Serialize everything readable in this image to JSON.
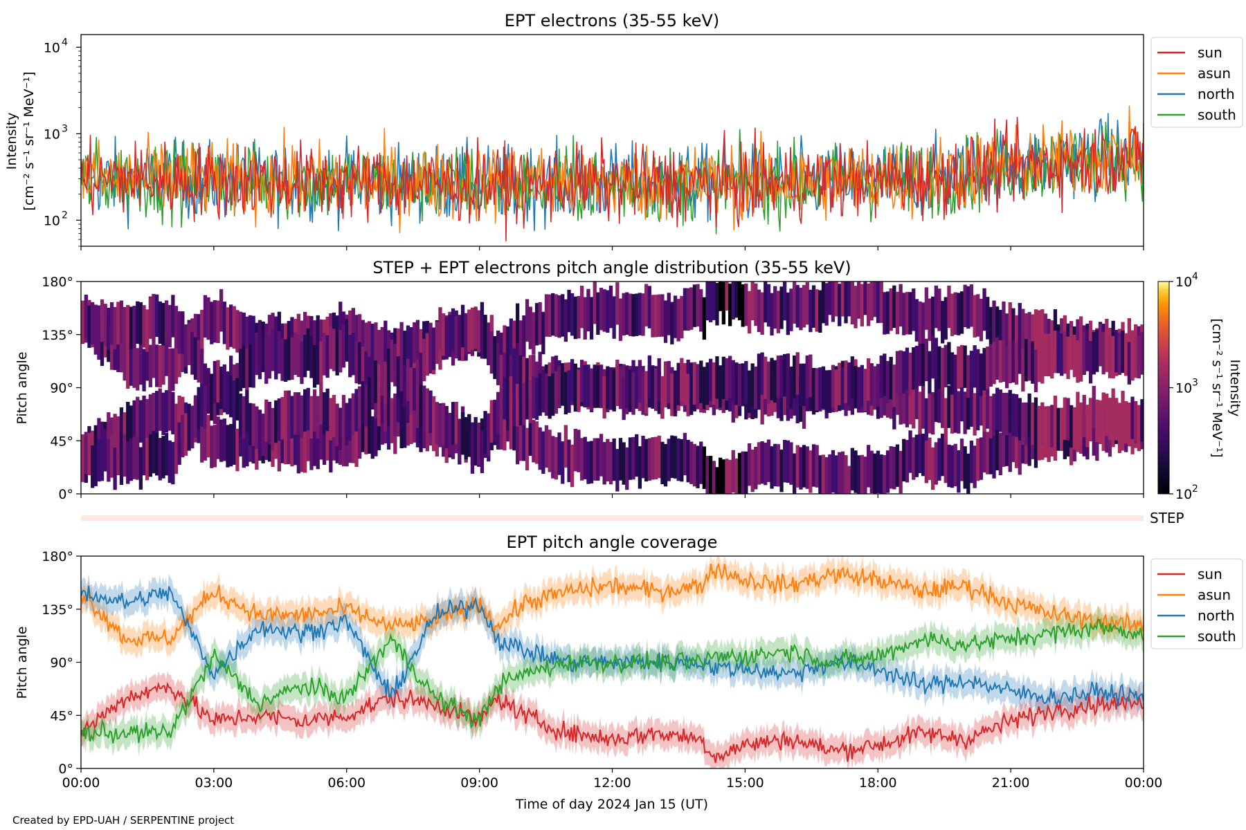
{
  "credit": "Created by EPD-UAH / SERPENTINE project",
  "colors": {
    "sun": "#d62728",
    "asun": "#ff7f0e",
    "north": "#1f77b4",
    "south": "#2ca02c",
    "step_band": "#fde9e2"
  },
  "step_label": "STEP",
  "xlabel": "Time of day 2024 Jan 15 (UT)",
  "x_ticks": [
    "00:00",
    "03:00",
    "06:00",
    "09:00",
    "12:00",
    "15:00",
    "18:00",
    "21:00",
    "00:00"
  ],
  "chart_data": [
    {
      "type": "line",
      "title": "EPT electrons (35-55 keV)",
      "ylabel_line1": "Intensity",
      "ylabel_line2": "[cm⁻² s⁻¹ sr⁻¹ MeV⁻¹]",
      "yscale": "log",
      "ylim": [
        50,
        14000
      ],
      "y_ticks": [
        {
          "value": 100,
          "base": "10",
          "exp": "2"
        },
        {
          "value": 1000,
          "base": "10",
          "exp": "3"
        },
        {
          "value": 10000,
          "base": "10",
          "exp": "4"
        }
      ],
      "xlim_hours": [
        0,
        24
      ],
      "legend_position": "outside-right",
      "series": [
        {
          "name": "sun",
          "trend": [
            [
              0,
              300
            ],
            [
              9,
              260
            ],
            [
              15,
              260
            ],
            [
              19,
              300
            ],
            [
              24,
              560
            ]
          ]
        },
        {
          "name": "asun",
          "trend": [
            [
              0,
              310
            ],
            [
              9,
              270
            ],
            [
              15,
              270
            ],
            [
              19,
              310
            ],
            [
              24,
              580
            ]
          ]
        },
        {
          "name": "north",
          "trend": [
            [
              0,
              300
            ],
            [
              9,
              265
            ],
            [
              15,
              265
            ],
            [
              19,
              305
            ],
            [
              24,
              590
            ]
          ]
        },
        {
          "name": "south",
          "trend": [
            [
              0,
              300
            ],
            [
              9,
              260
            ],
            [
              15,
              260
            ],
            [
              19,
              300
            ],
            [
              24,
              570
            ]
          ]
        }
      ]
    },
    {
      "type": "heatmap",
      "title": "STEP + EPT electrons pitch angle distribution (35-55 keV)",
      "ylabel": "Pitch angle",
      "y_ticks": [
        "0°",
        "45°",
        "90°",
        "135°",
        "180°"
      ],
      "ylim": [
        0,
        180
      ],
      "colorbar": {
        "scale": "log",
        "range": [
          100,
          10000
        ],
        "label_line1": "Intensity",
        "label_line2": "[cm⁻² s⁻¹ sr⁻¹ MeV⁻¹]",
        "ticks": [
          {
            "value": 100,
            "base": "10",
            "exp": "2"
          },
          {
            "value": 1000,
            "base": "10",
            "exp": "3"
          },
          {
            "value": 10000,
            "base": "10",
            "exp": "4"
          }
        ],
        "colormap": "inferno"
      }
    },
    {
      "type": "line",
      "title": "EPT pitch angle coverage",
      "ylabel": "Pitch angle",
      "y_ticks": [
        "0°",
        "45°",
        "90°",
        "135°",
        "180°"
      ],
      "ylim": [
        0,
        180
      ],
      "xlim_hours": [
        0,
        24
      ],
      "legend_position": "outside-right",
      "series": [
        {
          "name": "sun",
          "x": [
            0,
            1,
            2,
            3,
            4,
            5,
            6,
            7,
            8,
            9,
            9.4,
            10,
            11,
            12,
            13,
            14,
            14.3,
            15,
            16,
            17,
            18,
            19,
            20,
            21,
            22,
            23,
            24
          ],
          "values": [
            30,
            60,
            70,
            40,
            45,
            40,
            45,
            60,
            55,
            40,
            60,
            45,
            30,
            25,
            30,
            25,
            10,
            20,
            25,
            15,
            20,
            30,
            25,
            40,
            50,
            55,
            55
          ]
        },
        {
          "name": "asun",
          "x": [
            0,
            1,
            2,
            3,
            4,
            5,
            6,
            7,
            8,
            9,
            9.4,
            10,
            11,
            12,
            13,
            14,
            14.3,
            15,
            16,
            17,
            18,
            19,
            20,
            21,
            22,
            23,
            24
          ],
          "values": [
            150,
            110,
            110,
            150,
            130,
            130,
            135,
            120,
            125,
            140,
            120,
            140,
            150,
            155,
            150,
            155,
            170,
            160,
            155,
            165,
            160,
            150,
            155,
            140,
            130,
            125,
            120
          ]
        },
        {
          "name": "north",
          "x": [
            0,
            1,
            2,
            3,
            4,
            5,
            6,
            7,
            8,
            9,
            9.4,
            10,
            11,
            12,
            13,
            14,
            14.3,
            15,
            16,
            17,
            18,
            19,
            20,
            21,
            22,
            23,
            24
          ],
          "values": [
            150,
            140,
            150,
            80,
            120,
            115,
            125,
            60,
            130,
            140,
            110,
            100,
            90,
            90,
            90,
            90,
            85,
            85,
            80,
            90,
            85,
            70,
            75,
            65,
            60,
            65,
            60
          ]
        },
        {
          "name": "south",
          "x": [
            0,
            1,
            2,
            3,
            4,
            5,
            6,
            7,
            8,
            9,
            9.4,
            10,
            11,
            12,
            13,
            14,
            14.3,
            15,
            16,
            17,
            18,
            19,
            20,
            21,
            22,
            23,
            24
          ],
          "values": [
            30,
            30,
            30,
            95,
            55,
            70,
            60,
            110,
            60,
            40,
            70,
            80,
            90,
            90,
            90,
            90,
            95,
            95,
            100,
            90,
            95,
            110,
            105,
            110,
            115,
            120,
            115
          ]
        }
      ]
    }
  ]
}
